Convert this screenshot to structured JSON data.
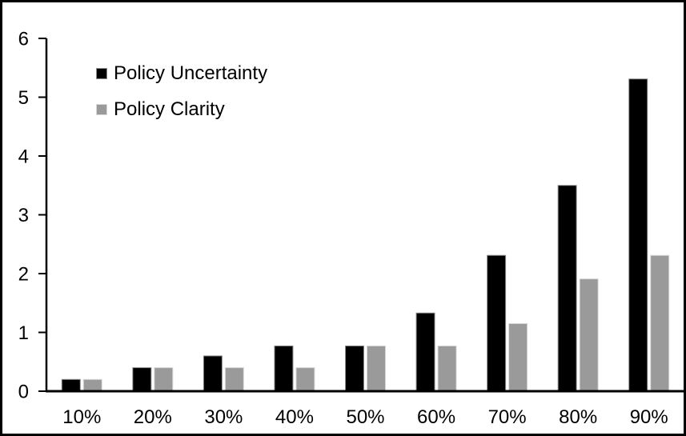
{
  "chart_data": {
    "type": "bar",
    "title": "",
    "xlabel": "",
    "ylabel": "",
    "categories": [
      "10%",
      "20%",
      "30%",
      "40%",
      "50%",
      "60%",
      "70%",
      "80%",
      "90%"
    ],
    "series": [
      {
        "name": "Policy Uncertainty",
        "color": "#000000",
        "border_color": "#8c8c8c",
        "values": [
          0.2,
          0.4,
          0.6,
          0.77,
          0.77,
          1.33,
          2.31,
          3.5,
          5.31
        ]
      },
      {
        "name": "Policy Clarity",
        "color": "#9a9a9a",
        "border_color": "#d9d9d9",
        "values": [
          0.2,
          0.4,
          0.4,
          0.4,
          0.77,
          0.77,
          1.15,
          1.91,
          2.31
        ]
      }
    ],
    "ylim": [
      0,
      6
    ],
    "yticks": [
      0,
      1,
      2,
      3,
      4,
      5,
      6
    ],
    "grid": "off",
    "legend_position": "inside-top-left"
  },
  "colors": {
    "background": "#ffffff",
    "frame_border": "#000000",
    "axis": "#000000",
    "tick_text": "#000000"
  }
}
